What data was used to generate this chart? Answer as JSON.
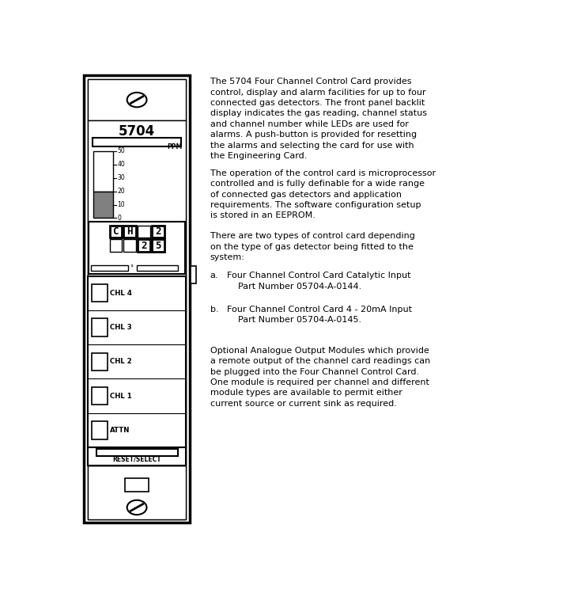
{
  "bg_color": "#ffffff",
  "text_color": "#000000",
  "gray_fill": "#808080",
  "text_block1": "The 5704 Four Channel Control Card provides\ncontrol, display and alarm facilities for up to four\nconnected gas detectors. The front panel backlit\ndisplay indicates the gas reading, channel status\nand channel number while LEDs are used for\nalarms. A push-button is provided for resetting\nthe alarms and selecting the card for use with\nthe Engineering Card.",
  "text_block2": "The operation of the control card is microprocessor\ncontrolled and is fully definable for a wide range\nof connected gas detectors and application\nrequirements. The software configuration setup\nis stored in an EEPROM.",
  "text_block3": "There are two types of control card depending\non the type of gas detector being fitted to the\nsystem:",
  "list_a1": "Four Channel Control Card Catalytic Input",
  "list_a2": "Part Number 05704-A-0144.",
  "list_b1": "Four Channel Control Card 4 - 20mA Input",
  "list_b2": "Part Number 05704-A-0145.",
  "text_block4": "Optional Analogue Output Modules which provide\na remote output of the channel card readings can\nbe plugged into the Four Channel Control Card.\nOne module is required per channel and different\nmodule types are available to permit either\ncurrent source or current sink as required.",
  "channel_labels": [
    "CHL 4",
    "CHL 3",
    "CHL 2",
    "CHL 1",
    "ATTN"
  ]
}
